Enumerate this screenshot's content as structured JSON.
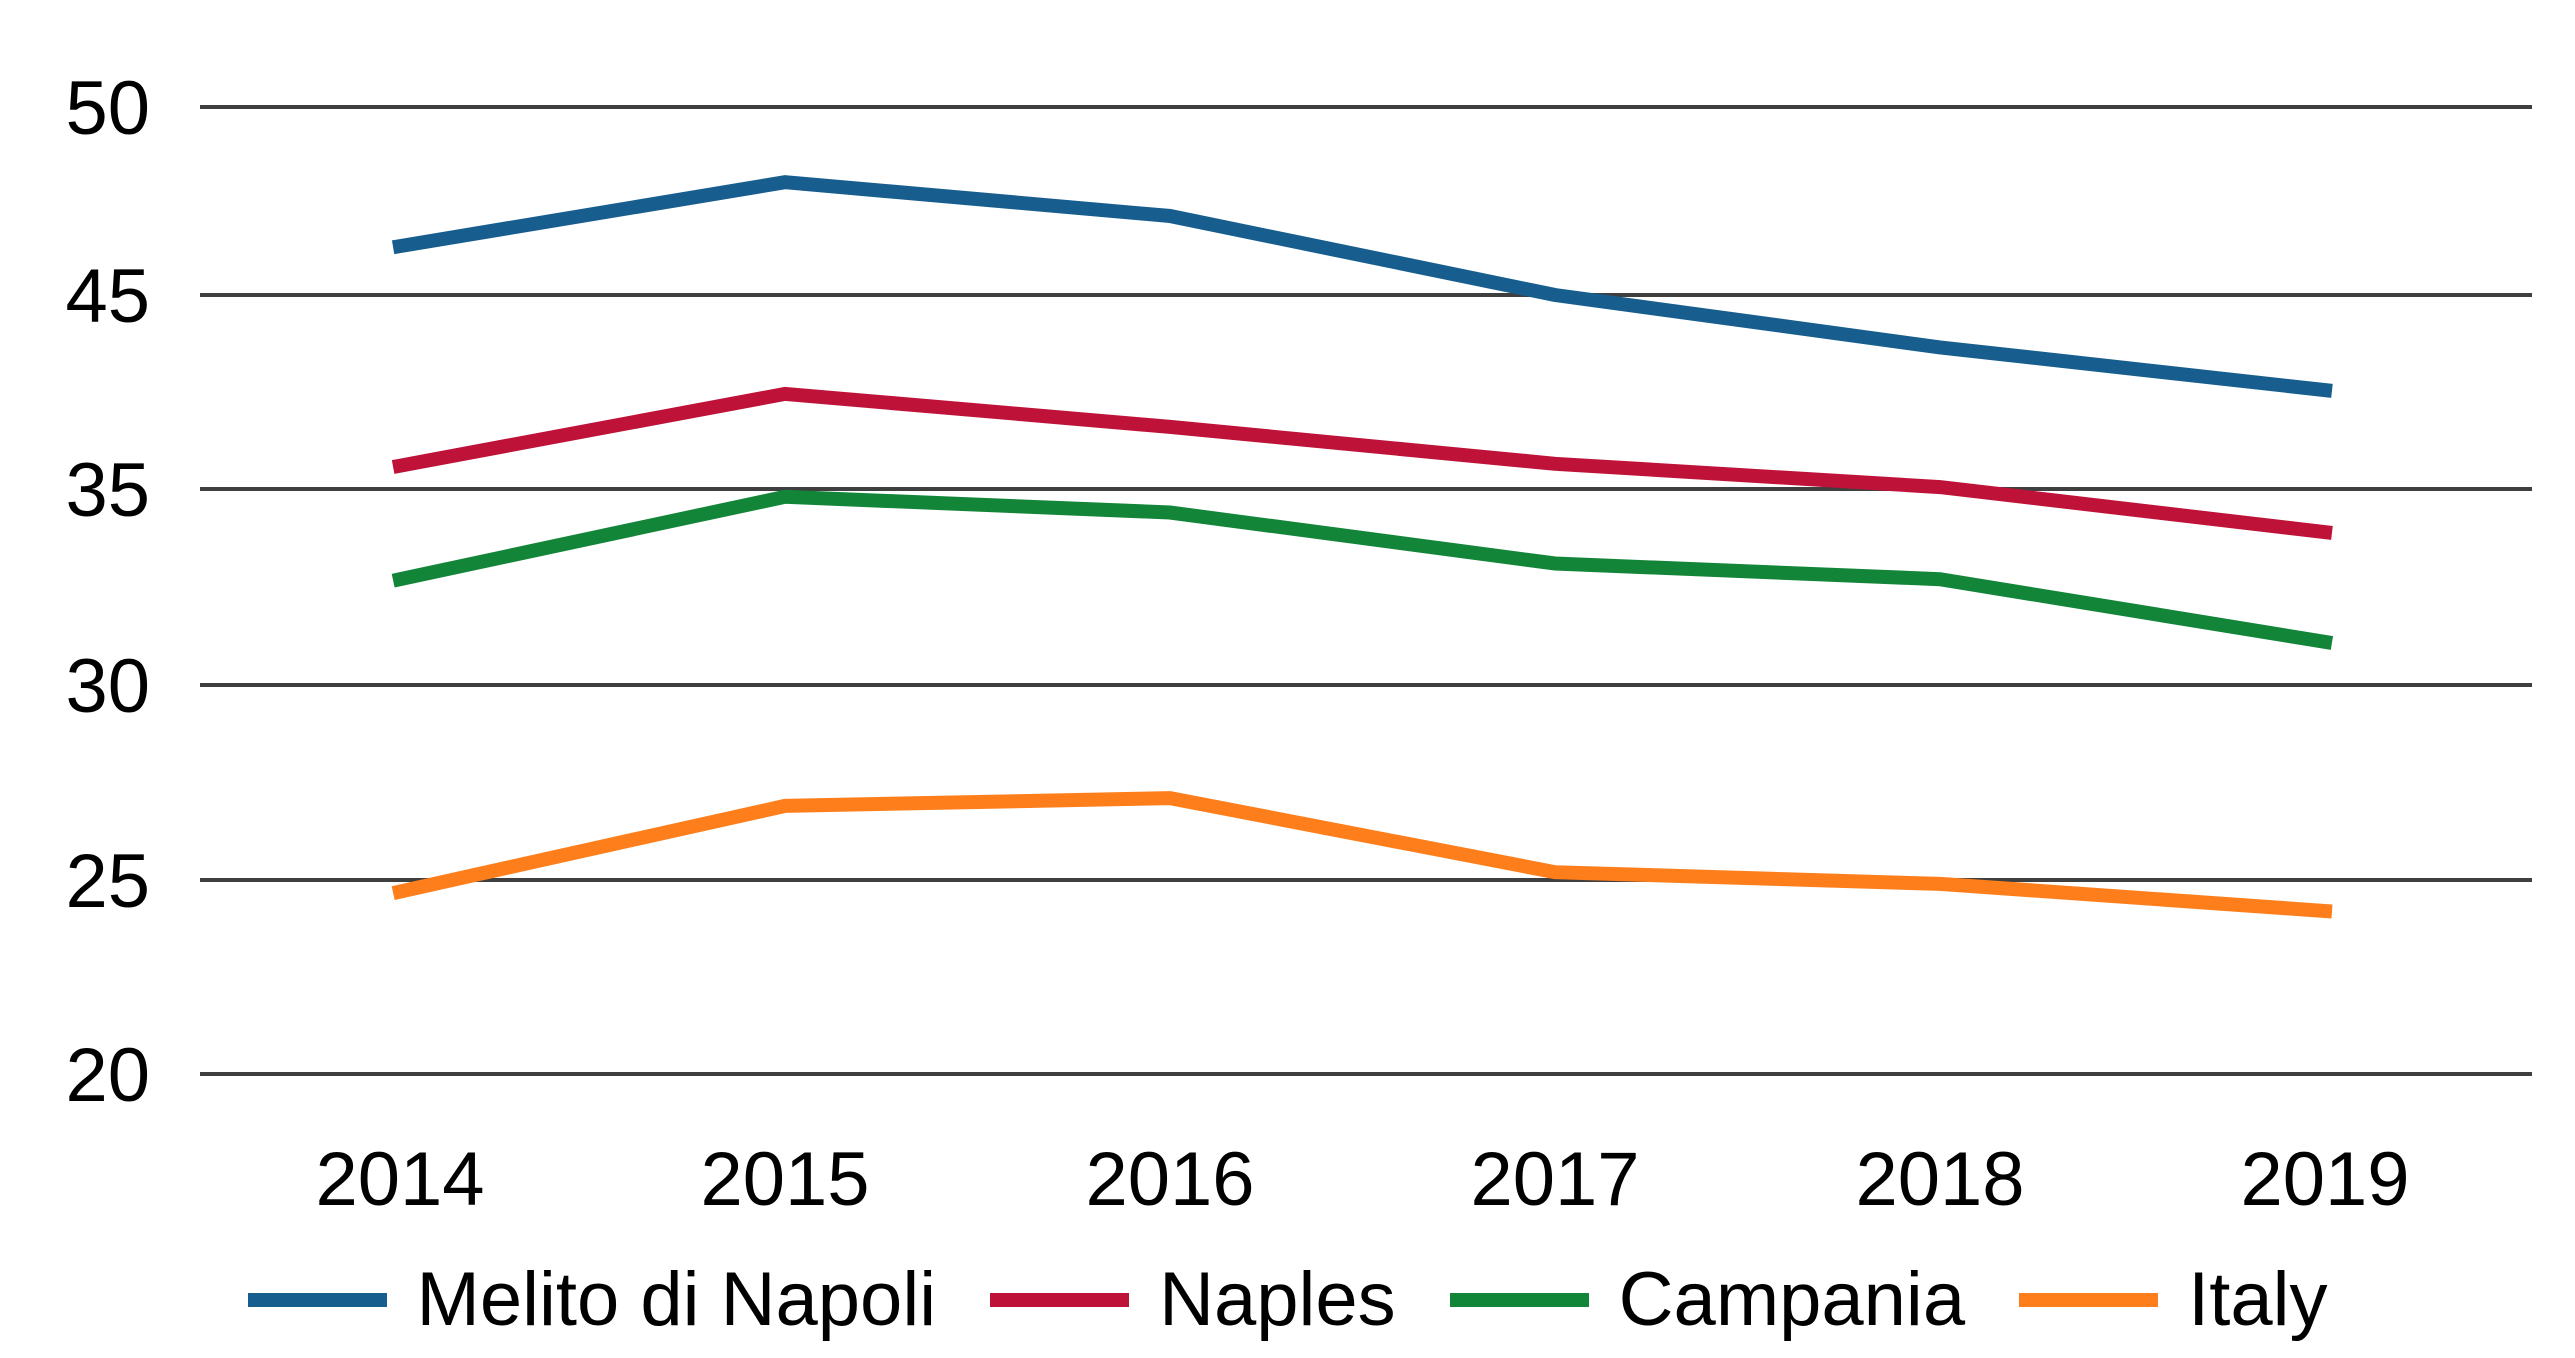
{
  "chart_data": {
    "type": "line",
    "title": "",
    "xlabel": "",
    "ylabel": "",
    "x": [
      "2014",
      "2015",
      "2016",
      "2017",
      "2018",
      "2019"
    ],
    "series": [
      {
        "name": "Melito di Napoli",
        "color": "#175E8E",
        "values": [
          46.3,
          48.0,
          47.1,
          45.0,
          42.3,
          40.1
        ]
      },
      {
        "name": "Naples",
        "color": "#BE1239",
        "values": [
          36.2,
          39.9,
          38.2,
          36.3,
          35.1,
          33.9
        ]
      },
      {
        "name": "Campania",
        "color": "#128539",
        "values": [
          32.7,
          34.8,
          34.4,
          33.1,
          32.7,
          31.1
        ]
      },
      {
        "name": "Italy",
        "color": "#FD7E1B",
        "values": [
          24.7,
          26.9,
          27.1,
          25.2,
          24.9,
          24.2
        ]
      }
    ],
    "y_axis": {
      "tick_labels": [
        "50",
        "45",
        "35",
        "30",
        "25",
        "20"
      ],
      "tick_values": [
        50,
        45,
        35,
        30,
        25,
        20
      ],
      "top_value": 50,
      "bottom_value": 20,
      "note": "gridlines evenly spaced; no gridline or label for 40"
    },
    "grid": true,
    "legend_position": "bottom",
    "colors": {
      "gridline": "#3F3F3F",
      "text": "#000000",
      "background": "#FFFFFF"
    }
  }
}
